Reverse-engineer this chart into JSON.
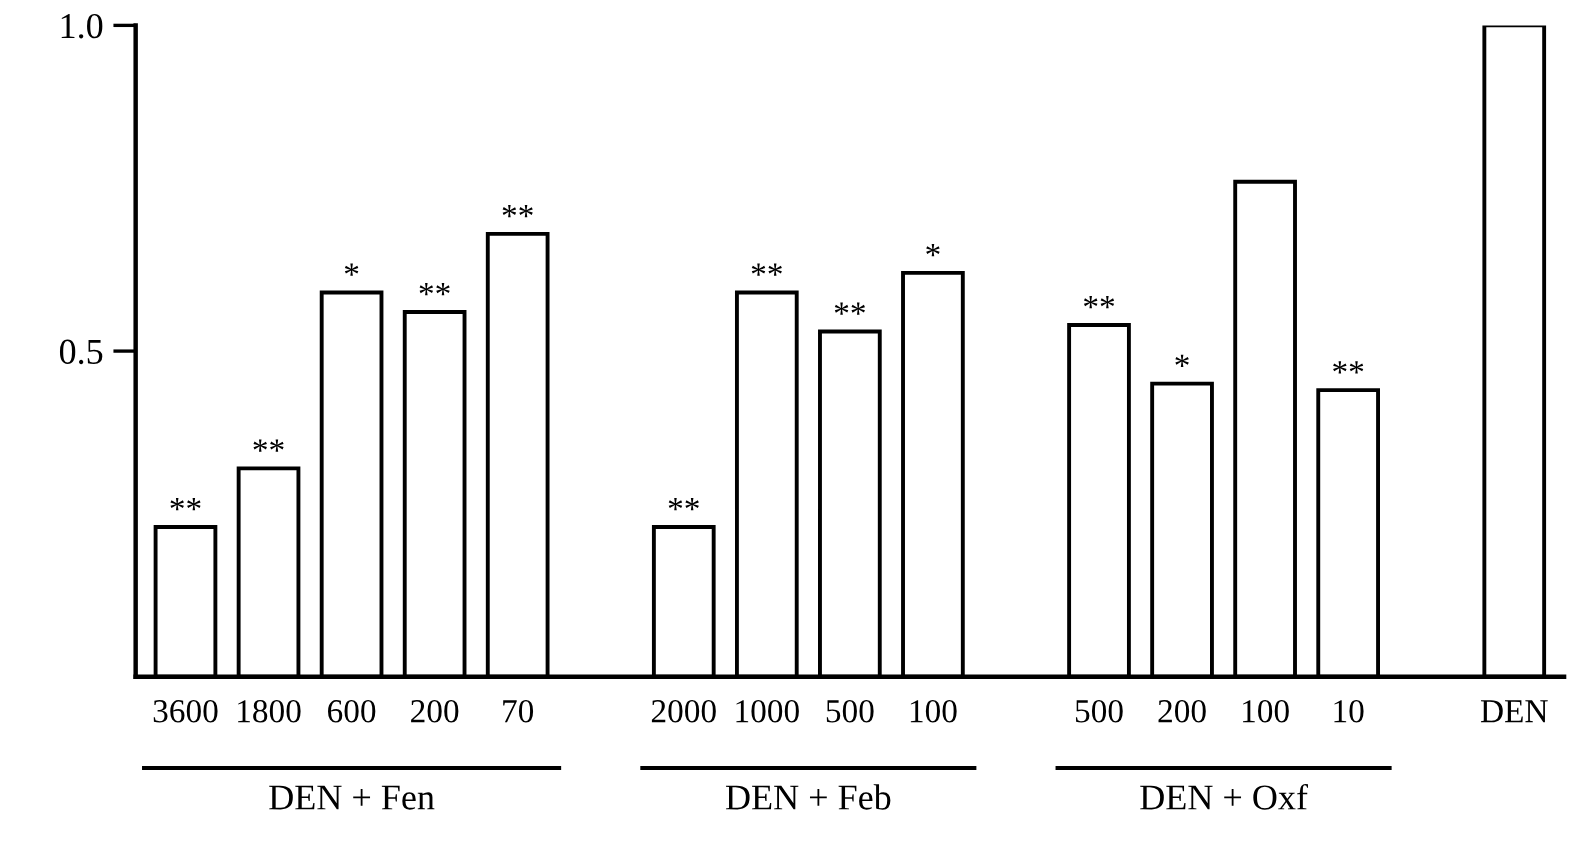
{
  "chart_data": {
    "type": "bar",
    "categories": [
      "3600",
      "1800",
      "600",
      "200",
      "70",
      null,
      "2000",
      "1000",
      "500",
      "100",
      null,
      "500",
      "200",
      "100",
      "10",
      null,
      "DEN"
    ],
    "values": [
      0.23,
      0.32,
      0.59,
      0.56,
      0.68,
      null,
      0.23,
      0.59,
      0.53,
      0.62,
      null,
      0.54,
      0.45,
      0.76,
      0.44,
      null,
      1.0
    ],
    "value_labels": [
      "**",
      "**",
      "*",
      "**",
      "**",
      null,
      "**",
      "**",
      "**",
      "*",
      null,
      "**",
      "*",
      null,
      "**",
      null,
      null
    ],
    "color": "#ffffff",
    "annotations": [
      "DEN + Fen",
      "DEN + Feb",
      "DEN + Oxf"
    ],
    "ylim": [
      0,
      1.0
    ],
    "yticks": [
      {
        "value": 0.5,
        "label": "0.5"
      },
      {
        "value": 1.0,
        "label": "1.0"
      }
    ],
    "grid": false,
    "legend": false
  }
}
